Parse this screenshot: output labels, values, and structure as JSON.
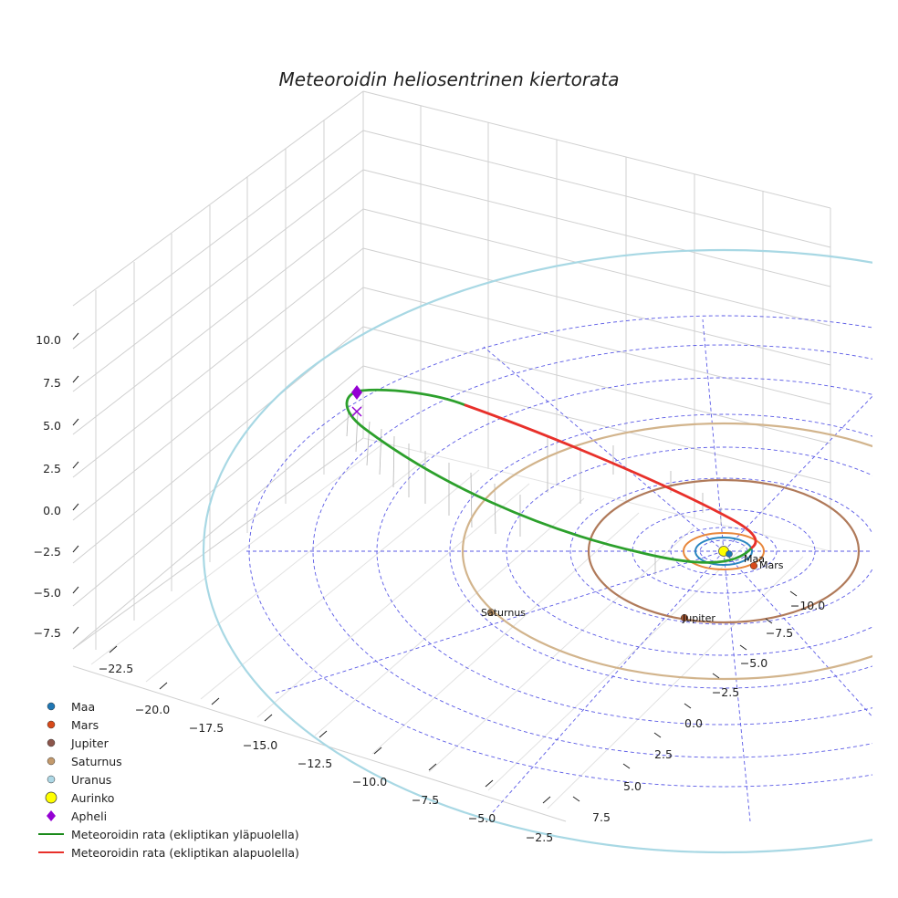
{
  "chart_data": {
    "type": "3d-line",
    "title": "Meteoroidin heliosentrinen kiertorata",
    "x_ticks": [
      "−22.5",
      "−20.0",
      "−17.5",
      "−15.0",
      "−12.5",
      "−10.0",
      "−7.5",
      "−5.0",
      "−2.5"
    ],
    "y_ticks": [
      "7.5",
      "5.0",
      "2.5",
      "0.0",
      "−2.5",
      "−5.0",
      "−7.5",
      "−10.0"
    ],
    "z_ticks": [
      "10.0",
      "7.5",
      "5.0",
      "2.5",
      "0.0",
      "−2.5",
      "−5.0",
      "−7.5"
    ],
    "planets": [
      {
        "name": "Maa",
        "color": "#1f77b4",
        "orbit_color": "#1f77b4"
      },
      {
        "name": "Mars",
        "color": "#d62728",
        "orbit_color": "#ff7f0e"
      },
      {
        "name": "Jupiter",
        "color": "#8c564b",
        "orbit_color": "#a0522d"
      },
      {
        "name": "Saturnus",
        "color": "#d2b48c",
        "orbit_color": "#d2b48c"
      },
      {
        "name": "Uranus",
        "color": "#add8e6",
        "orbit_color": "#add8e6"
      }
    ],
    "sun": {
      "name": "Aurinko",
      "color": "#ffff00"
    },
    "aphelion": {
      "name": "Apheli",
      "color": "#9400d3"
    },
    "orbit_above": {
      "name": "Meteoroidin rata (ekliptikan yläpuolella)",
      "color": "#2ca02c"
    },
    "orbit_below": {
      "name": "Meteoroidin rata (ekliptikan alapuolella)",
      "color": "#e8302a"
    }
  },
  "legend": {
    "items": [
      {
        "label": "Maa",
        "kind": "dot",
        "color": "#1f77b4"
      },
      {
        "label": "Mars",
        "kind": "dot",
        "color": "#d62728"
      },
      {
        "label": "Jupiter",
        "kind": "dot",
        "color": "#8c564b"
      },
      {
        "label": "Saturnus",
        "kind": "dot",
        "color": "#c49a6c"
      },
      {
        "label": "Uranus",
        "kind": "dot",
        "color": "#add8e6"
      },
      {
        "label": "Aurinko",
        "kind": "bigdot",
        "color": "#ffff00"
      },
      {
        "label": "Apheli",
        "kind": "diamond",
        "color": "#9400d3"
      },
      {
        "label": "Meteoroidin rata (ekliptikan yläpuolella)",
        "kind": "line",
        "color": "#2ca02c"
      },
      {
        "label": "Meteoroidin rata (ekliptikan alapuolella)",
        "kind": "line",
        "color": "#e8302a"
      }
    ]
  }
}
